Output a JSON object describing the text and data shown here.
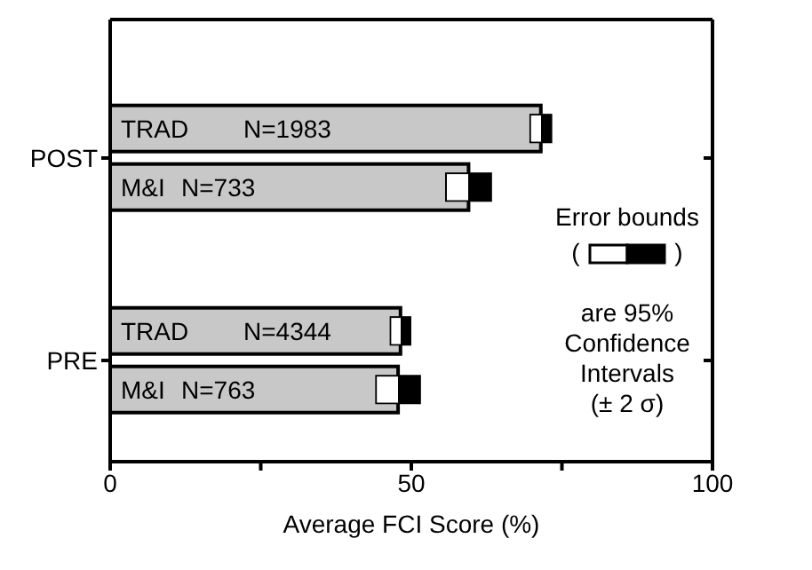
{
  "chart_data": {
    "type": "bar",
    "orientation": "horizontal",
    "xlabel": "Average FCI Score (%)",
    "categories": [
      "POST",
      "PRE"
    ],
    "series": [
      {
        "name": "TRAD",
        "color": "#c8c8c8",
        "values": [
          71.5,
          48.2
        ],
        "errors": [
          1.6,
          1.5
        ]
      },
      {
        "name": "M&I",
        "color": "#c8c8c8",
        "values": [
          59.5,
          47.8
        ],
        "errors": [
          3.6,
          3.5
        ]
      }
    ],
    "xlim": [
      0,
      100
    ],
    "xticks": [
      0,
      {
        "value": 25,
        "label": null
      },
      50,
      {
        "value": 75,
        "label": null
      },
      100
    ],
    "legend": false,
    "grid": false,
    "annotations": [
      {
        "text": "N=1983",
        "y": "POST"
      },
      {
        "text": "N=733",
        "y": "POST"
      },
      {
        "text": "N=4344",
        "y": "PRE"
      },
      {
        "text": "N=763",
        "y": "PRE"
      },
      "Error bounds",
      "(",
      ")",
      "are 95%",
      "Confidence",
      "Intervals",
      "(± 2 σ)"
    ]
  }
}
